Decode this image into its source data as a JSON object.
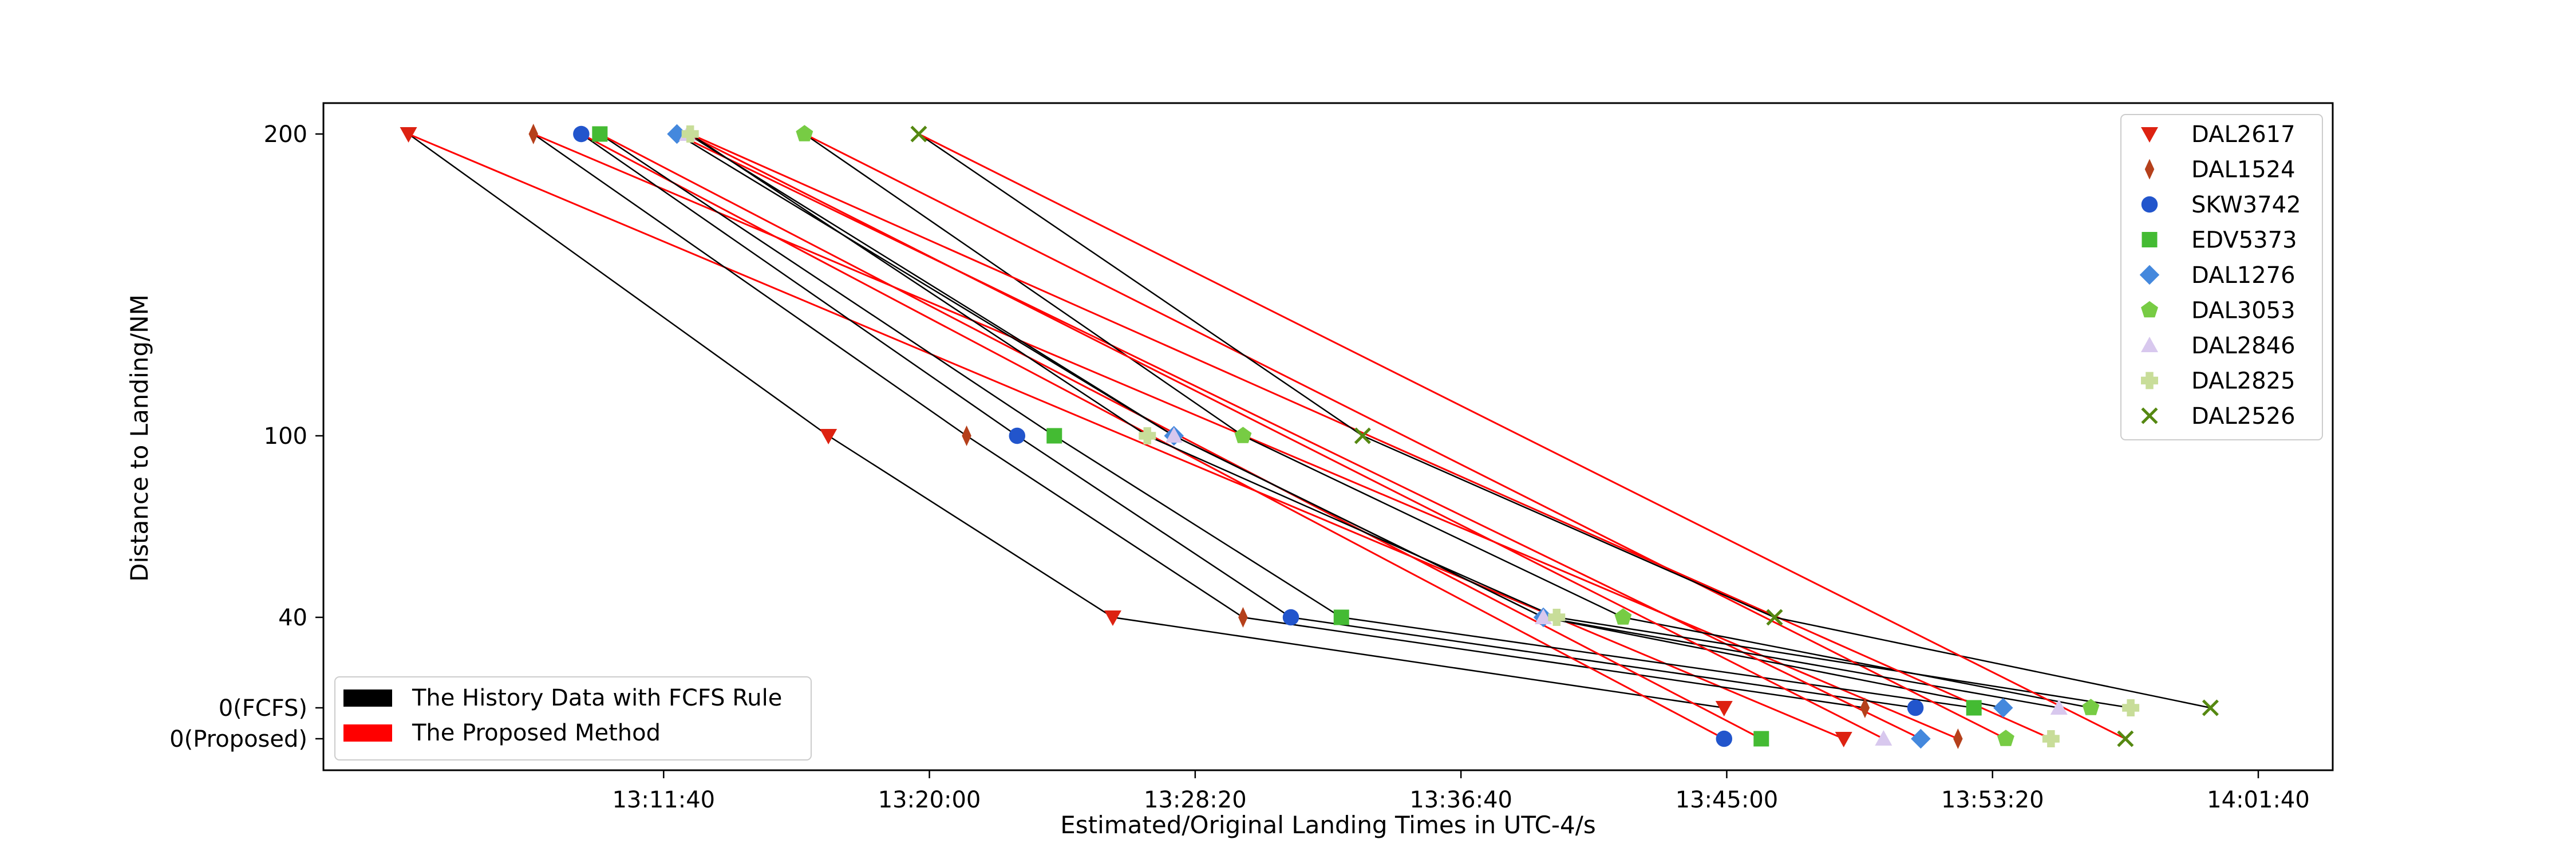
{
  "chart_data": {
    "type": "scatter",
    "title": "",
    "xlabel": "Estimated/Original Landing Times in UTC-4/s",
    "ylabel": "Distance to Landing/NM",
    "x_unit": "seconds since 00:00 (UTC-4)",
    "xlim": [
      46860,
      50640
    ],
    "x_ticks": [
      {
        "value": 47500,
        "label": "13:11:40"
      },
      {
        "value": 48000,
        "label": "13:20:00"
      },
      {
        "value": 48500,
        "label": "13:28:20"
      },
      {
        "value": 49000,
        "label": "13:36:40"
      },
      {
        "value": 49500,
        "label": "13:45:00"
      },
      {
        "value": 50000,
        "label": "13:53:20"
      },
      {
        "value": 50500,
        "label": "14:01:40"
      }
    ],
    "y_levels": [
      {
        "key": "d200",
        "label": "200"
      },
      {
        "key": "d100",
        "label": "100"
      },
      {
        "key": "d40",
        "label": "40"
      },
      {
        "key": "fcfs",
        "label": "0(FCFS)"
      },
      {
        "key": "prop",
        "label": "0(Proposed)"
      }
    ],
    "series": [
      {
        "name": "DAL2617",
        "color": "#dd2211",
        "marker": "triangle-down",
        "t200": 47020,
        "t100": 47810,
        "t40": 48345,
        "t_fcfs": 49495,
        "t_prop": 49720
      },
      {
        "name": "DAL1524",
        "color": "#b5401b",
        "marker": "thin-diamond",
        "t200": 47255,
        "t100": 48070,
        "t40": 48590,
        "t_fcfs": 49760,
        "t_prop": 49935
      },
      {
        "name": "SKW3742",
        "color": "#2255cc",
        "marker": "circle",
        "t200": 47345,
        "t100": 48165,
        "t40": 48680,
        "t_fcfs": 49855,
        "t_prop": 49495
      },
      {
        "name": "EDV5373",
        "color": "#44bb33",
        "marker": "square",
        "t200": 47380,
        "t100": 48235,
        "t40": 48775,
        "t_fcfs": 49965,
        "t_prop": 49565
      },
      {
        "name": "DAL1276",
        "color": "#4488dd",
        "marker": "diamond",
        "t200": 47525,
        "t100": 48460,
        "t40": 49155,
        "t_fcfs": 50020,
        "t_prop": 49865
      },
      {
        "name": "DAL3053",
        "color": "#77cc44",
        "marker": "pentagon",
        "t200": 47765,
        "t100": 48590,
        "t40": 49305,
        "t_fcfs": 50185,
        "t_prop": 50025
      },
      {
        "name": "DAL2846",
        "color": "#d8c8ee",
        "marker": "triangle-up",
        "t200": 47545,
        "t100": 48460,
        "t40": 49155,
        "t_fcfs": 50125,
        "t_prop": 49795
      },
      {
        "name": "DAL2825",
        "color": "#c8dd99",
        "marker": "plus",
        "t200": 47550,
        "t100": 48410,
        "t40": 49180,
        "t_fcfs": 50260,
        "t_prop": 50110
      },
      {
        "name": "DAL2526",
        "color": "#558811",
        "marker": "x",
        "t200": 47980,
        "t100": 48815,
        "t40": 49590,
        "t_fcfs": 50410,
        "t_prop": 50250
      }
    ],
    "lines_legend": [
      {
        "name": "The History Data with FCFS Rule",
        "color": "#000000"
      },
      {
        "name": "The Proposed Method",
        "color": "#ff0000"
      }
    ],
    "legend_position": [
      "top-right",
      "bottom-left"
    ]
  }
}
